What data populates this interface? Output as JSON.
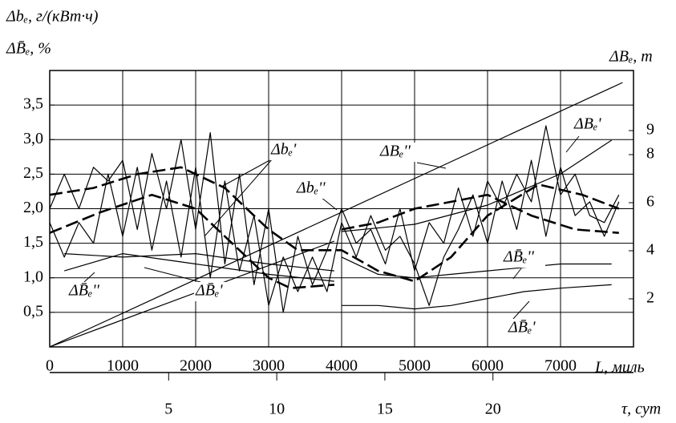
{
  "chart_data": {
    "type": "line",
    "y_title": "Δbₑ, г/(кВт·ч)",
    "y_title2": "ΔB̄ₑ, %",
    "y2_title": "ΔBₑ, т",
    "x_title": "L, миль",
    "x2_title": "τ, сут",
    "xlim": [
      0,
      8000
    ],
    "xticks": [
      0,
      1000,
      2000,
      3000,
      4000,
      5000,
      6000,
      7000
    ],
    "ylim": [
      0,
      4.0
    ],
    "yticks": [
      {
        "value": 0.5,
        "label": "0,5"
      },
      {
        "value": 1.0,
        "label": "1,0"
      },
      {
        "value": 1.5,
        "label": "1,5"
      },
      {
        "value": 2.0,
        "label": "2,0"
      },
      {
        "value": 2.5,
        "label": "2,5"
      },
      {
        "value": 3.0,
        "label": "3,0"
      },
      {
        "value": 3.5,
        "label": "3,5"
      }
    ],
    "y2lim": [
      0,
      11.5
    ],
    "y2ticks": [
      2,
      4,
      6,
      8,
      9
    ],
    "x2lim": [
      -0.5,
      26.5
    ],
    "x2ticks": [
      5,
      10,
      15,
      20
    ],
    "grid": true,
    "color": "#000000",
    "series": [
      {
        "name": "ΔBₑ''",
        "axis": "y2",
        "dash": false,
        "x": [
          0,
          7850
        ],
        "values": [
          0,
          11.0
        ]
      },
      {
        "name": "ΔBₑ'",
        "axis": "y2",
        "dash": false,
        "x": [
          0,
          3900,
          3950,
          4000,
          5000,
          6000,
          7000,
          7700
        ],
        "values": [
          0,
          4.4,
          null,
          4.8,
          5.1,
          5.9,
          7.2,
          8.6
        ]
      },
      {
        "name": "Δbₑ'",
        "dash": true,
        "x": [
          0,
          600,
          1200,
          1800,
          2400,
          3000,
          3400,
          4000,
          4500,
          5000,
          5500,
          6000,
          6700,
          7300,
          7800
        ],
        "values": [
          2.2,
          2.3,
          2.5,
          2.6,
          2.3,
          1.7,
          1.4,
          1.4,
          1.1,
          0.95,
          1.3,
          1.9,
          2.35,
          2.2,
          2.0
        ]
      },
      {
        "name": "Δbₑ''",
        "dash": true,
        "x": [
          0,
          700,
          1400,
          2000,
          2600,
          3000,
          3300,
          3900,
          3950,
          4000,
          4500,
          5000,
          5500,
          6000,
          6600,
          7200,
          7800
        ],
        "values": [
          1.65,
          1.95,
          2.2,
          2.0,
          1.4,
          1.0,
          0.85,
          0.9,
          null,
          1.7,
          1.8,
          2.0,
          2.1,
          2.2,
          1.9,
          1.7,
          1.65
        ]
      },
      {
        "dash": false,
        "x": [
          0,
          200,
          400,
          600,
          800,
          1000,
          1200,
          1400,
          1600,
          1800,
          2000,
          2200,
          2400,
          2600,
          2800,
          3000,
          3200,
          3400,
          3600,
          3800,
          4000,
          4200,
          4400,
          4600,
          4800,
          5000,
          5200,
          5400,
          5600,
          5800,
          6000,
          6200,
          6400,
          6600,
          6800,
          7000,
          7200,
          7400,
          7600,
          7800
        ],
        "values": [
          2.0,
          2.5,
          2.0,
          2.6,
          2.4,
          2.7,
          1.7,
          2.8,
          2.0,
          3.0,
          1.7,
          3.1,
          1.2,
          2.5,
          0.9,
          2.0,
          0.5,
          1.6,
          0.9,
          1.4,
          2.0,
          1.5,
          1.7,
          1.2,
          2.0,
          1.1,
          1.8,
          1.5,
          2.3,
          1.6,
          2.4,
          2.0,
          2.5,
          2.1,
          3.2,
          2.2,
          2.5,
          1.9,
          1.8,
          2.2
        ]
      },
      {
        "dash": false,
        "x": [
          0,
          200,
          400,
          600,
          800,
          1000,
          1200,
          1400,
          1600,
          1800,
          2000,
          2200,
          2400,
          2600,
          2800,
          3000,
          3200,
          3400,
          3600,
          3800,
          4000,
          4200,
          4400,
          4600,
          4800,
          5000,
          5200,
          5400,
          5600,
          5800,
          6000,
          6200,
          6400,
          6600,
          6800,
          7000,
          7200,
          7400,
          7600,
          7800
        ],
        "values": [
          1.8,
          1.3,
          1.8,
          1.5,
          2.5,
          1.6,
          2.6,
          1.4,
          2.4,
          1.3,
          2.6,
          1.0,
          2.4,
          1.1,
          1.9,
          0.6,
          1.3,
          0.8,
          1.3,
          0.8,
          1.8,
          1.3,
          1.9,
          1.4,
          1.6,
          1.2,
          0.6,
          1.3,
          1.7,
          2.2,
          1.5,
          2.4,
          1.7,
          2.7,
          1.6,
          2.6,
          1.9,
          2.1,
          1.6,
          2.1
        ]
      },
      {
        "name": "ΔB̄ₑ'",
        "dash": false,
        "x": [
          200,
          1000,
          2000,
          3000,
          3900,
          3950,
          4000,
          4500,
          5000,
          5500,
          6000,
          6500,
          7000,
          7700
        ],
        "values": [
          1.35,
          1.3,
          1.35,
          1.2,
          1.1,
          null,
          0.6,
          0.6,
          0.55,
          0.6,
          0.7,
          0.8,
          0.85,
          0.9
        ]
      },
      {
        "name": "ΔB̄ₑ''",
        "dash": false,
        "x": [
          200,
          1000,
          2000,
          3000,
          3900,
          3950,
          4000,
          4500,
          5000,
          5500,
          6000,
          6500,
          7000,
          7700
        ],
        "values": [
          1.1,
          1.35,
          1.2,
          1.05,
          0.95,
          null,
          1.3,
          1.05,
          1.0,
          1.05,
          1.1,
          1.15,
          1.2,
          1.2
        ]
      }
    ]
  }
}
